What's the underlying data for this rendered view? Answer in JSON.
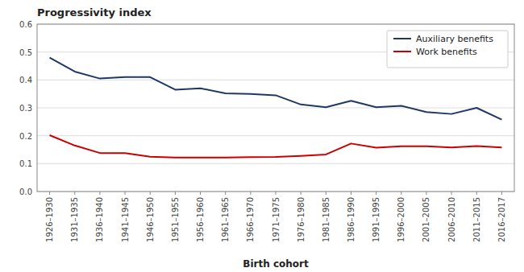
{
  "chart_data": {
    "type": "line",
    "title": "Progressivity index",
    "xlabel": "Birth cohort",
    "categories": [
      "1926–1930",
      "1931–1935",
      "1936–1940",
      "1941–1945",
      "1946–1950",
      "1951–1955",
      "1956–1960",
      "1961–1965",
      "1966–1970",
      "1971–1975",
      "1976–1980",
      "1981–1985",
      "1986–1990",
      "1991–1995",
      "1996–2000",
      "2001–2005",
      "2006–2010",
      "2011–2015",
      "2016–2017"
    ],
    "series": [
      {
        "name": "Auxiliary benefits",
        "color": "#1F3864",
        "values": [
          0.48,
          0.43,
          0.405,
          0.41,
          0.41,
          0.365,
          0.37,
          0.352,
          0.35,
          0.345,
          0.312,
          0.302,
          0.325,
          0.302,
          0.307,
          0.285,
          0.278,
          0.3,
          0.258
        ]
      },
      {
        "name": "Work benefits",
        "color": "#CC0000",
        "values": [
          0.202,
          0.165,
          0.138,
          0.138,
          0.125,
          0.122,
          0.122,
          0.122,
          0.123,
          0.124,
          0.128,
          0.133,
          0.172,
          0.157,
          0.162,
          0.162,
          0.158,
          0.163,
          0.158
        ]
      }
    ],
    "ylim": [
      0,
      0.6
    ],
    "yticks": [
      {
        "value": 0,
        "label": "0.0"
      },
      0.1,
      0.2,
      0.3,
      0.4,
      0.5,
      0.6
    ],
    "grid": true,
    "legend": "upper right"
  }
}
